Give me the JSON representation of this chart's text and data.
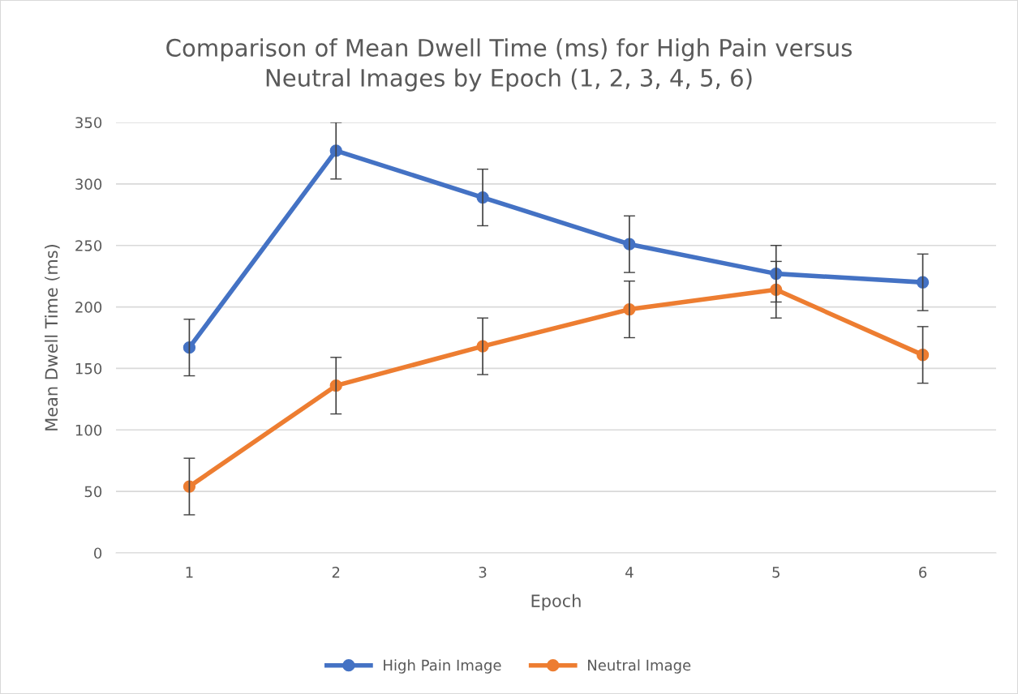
{
  "chart_data": {
    "type": "line",
    "title": "Comparison of Mean Dwell Time (ms) for High Pain versus\nNeutral Images by Epoch (1, 2, 3, 4, 5, 6)",
    "xlabel": "Epoch",
    "ylabel": "Mean Dwell Time (ms)",
    "categories": [
      "1",
      "2",
      "3",
      "4",
      "5",
      "6"
    ],
    "series": [
      {
        "name": "High Pain Image",
        "color": "#4472c4",
        "values": [
          167,
          327,
          289,
          251,
          227,
          220
        ],
        "errors": [
          23,
          23,
          23,
          23,
          23,
          23
        ]
      },
      {
        "name": "Neutral Image",
        "color": "#ed7d31",
        "values": [
          54,
          136,
          168,
          198,
          214,
          161
        ],
        "errors": [
          23,
          23,
          23,
          23,
          23,
          23
        ]
      }
    ],
    "ylim": [
      0,
      350
    ],
    "yticks": [
      0,
      50,
      100,
      150,
      200,
      250,
      300,
      350
    ],
    "grid": "y",
    "legend": "bottom",
    "marker": "circle",
    "line_style": "solid"
  }
}
